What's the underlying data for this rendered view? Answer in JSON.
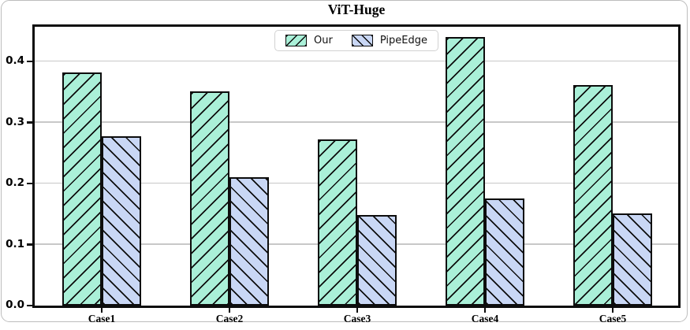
{
  "figure": {
    "background": "#ffffff",
    "card_border_color": "#bdbdbd"
  },
  "chart_data": {
    "type": "bar",
    "title": "ViT-Huge",
    "categories": [
      "Case1",
      "Case2",
      "Case3",
      "Case4",
      "Case5"
    ],
    "series": [
      {
        "name": "Our",
        "color": "#aaf0d8",
        "hatch": "/",
        "values": [
          0.382,
          0.351,
          0.273,
          0.44,
          0.362
        ]
      },
      {
        "name": "PipeEdge",
        "color": "#c9d7f5",
        "hatch": "\\",
        "values": [
          0.278,
          0.21,
          0.148,
          0.175,
          0.151
        ]
      }
    ],
    "xlabel": "",
    "ylabel": "",
    "ylim": [
      0,
      0.457
    ],
    "yticks": [
      "0.0",
      "0.1",
      "0.2",
      "0.3",
      "0.4"
    ],
    "grid": true,
    "legend_position": "upper center",
    "edge_color": "#0d0d0d",
    "grid_color": "#c8c8c8"
  }
}
